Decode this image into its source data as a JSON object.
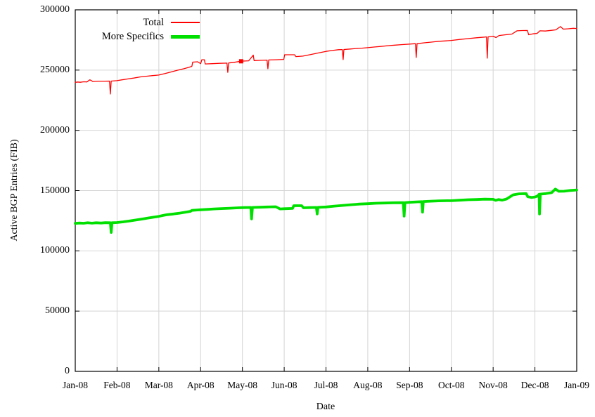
{
  "figure": {
    "background": "#ffffff",
    "border_color": "#000000",
    "grid_color": "#d4d4d4",
    "tick_color": "#000000",
    "text_color": "#000000"
  },
  "chart_data": {
    "type": "line",
    "title": "",
    "xlabel": "Date",
    "ylabel": "Active BGP Entries (FIB)",
    "grid": true,
    "legend_position": "top-left-inside",
    "ylim": [
      0,
      300000
    ],
    "y_tick_values": [
      0,
      50000,
      100000,
      150000,
      200000,
      250000,
      300000
    ],
    "y_tick_labels": [
      "0",
      "50000",
      "100000",
      "150000",
      "200000",
      "250000",
      "300000"
    ],
    "x_tick_values": [
      0,
      1,
      2,
      3,
      4,
      5,
      6,
      7,
      8,
      9,
      10,
      11,
      12
    ],
    "x_tick_labels": [
      "Jan-08",
      "Feb-08",
      "Mar-08",
      "Apr-08",
      "May-08",
      "Jun-08",
      "Jul-08",
      "Aug-08",
      "Sep-08",
      "Oct-08",
      "Nov-08",
      "Dec-08",
      "Jan-09"
    ],
    "series": [
      {
        "name": "Total",
        "color": "#ff0000",
        "stroke_width": 1.3,
        "points": [
          [
            0.0,
            239800
          ],
          [
            0.06,
            240100
          ],
          [
            0.12,
            239900
          ],
          [
            0.2,
            240300
          ],
          [
            0.28,
            240200
          ],
          [
            0.35,
            241900
          ],
          [
            0.42,
            240500
          ],
          [
            0.55,
            240800
          ],
          [
            0.7,
            240800
          ],
          [
            0.82,
            240900
          ],
          [
            0.84,
            230100
          ],
          [
            0.86,
            240900
          ],
          [
            1.0,
            241200
          ],
          [
            1.12,
            241900
          ],
          [
            1.25,
            242600
          ],
          [
            1.4,
            243400
          ],
          [
            1.55,
            244300
          ],
          [
            1.7,
            244900
          ],
          [
            1.85,
            245400
          ],
          [
            2.0,
            245900
          ],
          [
            2.15,
            247100
          ],
          [
            2.3,
            248500
          ],
          [
            2.45,
            249900
          ],
          [
            2.6,
            251100
          ],
          [
            2.72,
            252300
          ],
          [
            2.79,
            253100
          ],
          [
            2.81,
            256600
          ],
          [
            2.93,
            256900
          ],
          [
            3.0,
            255300
          ],
          [
            3.03,
            258600
          ],
          [
            3.09,
            258600
          ],
          [
            3.11,
            255100
          ],
          [
            3.28,
            255300
          ],
          [
            3.45,
            255600
          ],
          [
            3.63,
            255800
          ],
          [
            3.65,
            248100
          ],
          [
            3.67,
            255900
          ],
          [
            3.8,
            256400
          ],
          [
            3.93,
            257200
          ],
          [
            4.02,
            257500
          ],
          [
            4.15,
            257700
          ],
          [
            4.26,
            262400
          ],
          [
            4.28,
            257900
          ],
          [
            4.45,
            258100
          ],
          [
            4.59,
            258300
          ],
          [
            4.61,
            251100
          ],
          [
            4.63,
            258400
          ],
          [
            4.8,
            258600
          ],
          [
            4.99,
            258900
          ],
          [
            5.01,
            262700
          ],
          [
            5.25,
            262700
          ],
          [
            5.28,
            261200
          ],
          [
            5.45,
            261600
          ],
          [
            5.62,
            262800
          ],
          [
            5.8,
            264100
          ],
          [
            6.0,
            265500
          ],
          [
            6.15,
            266300
          ],
          [
            6.3,
            266900
          ],
          [
            6.39,
            267000
          ],
          [
            6.41,
            258700
          ],
          [
            6.43,
            267100
          ],
          [
            6.58,
            267500
          ],
          [
            6.72,
            267900
          ],
          [
            6.86,
            268200
          ],
          [
            7.0,
            268600
          ],
          [
            7.15,
            269100
          ],
          [
            7.3,
            269600
          ],
          [
            7.5,
            270300
          ],
          [
            7.65,
            270700
          ],
          [
            7.8,
            271100
          ],
          [
            8.0,
            271600
          ],
          [
            8.14,
            271900
          ],
          [
            8.16,
            260500
          ],
          [
            8.18,
            271900
          ],
          [
            8.35,
            272600
          ],
          [
            8.52,
            273200
          ],
          [
            8.7,
            273900
          ],
          [
            8.85,
            274200
          ],
          [
            9.0,
            274600
          ],
          [
            9.2,
            275400
          ],
          [
            9.4,
            276100
          ],
          [
            9.6,
            276800
          ],
          [
            9.8,
            277400
          ],
          [
            9.84,
            277600
          ],
          [
            9.86,
            259900
          ],
          [
            9.88,
            277600
          ],
          [
            10.0,
            278100
          ],
          [
            10.07,
            277000
          ],
          [
            10.14,
            278700
          ],
          [
            10.3,
            279300
          ],
          [
            10.45,
            279900
          ],
          [
            10.57,
            282600
          ],
          [
            10.7,
            282800
          ],
          [
            10.82,
            282900
          ],
          [
            10.85,
            279300
          ],
          [
            10.95,
            280100
          ],
          [
            11.05,
            280400
          ],
          [
            11.12,
            282600
          ],
          [
            11.25,
            282400
          ],
          [
            11.4,
            283000
          ],
          [
            11.5,
            283400
          ],
          [
            11.61,
            286100
          ],
          [
            11.68,
            284000
          ],
          [
            11.8,
            284300
          ],
          [
            11.92,
            284700
          ],
          [
            12.0,
            284500
          ]
        ]
      },
      {
        "name": "More Specifics",
        "color": "#00e000",
        "stroke_width": 3.8,
        "points": [
          [
            0.0,
            122800
          ],
          [
            0.1,
            123100
          ],
          [
            0.2,
            122900
          ],
          [
            0.3,
            123300
          ],
          [
            0.4,
            123000
          ],
          [
            0.5,
            123300
          ],
          [
            0.62,
            123100
          ],
          [
            0.72,
            123400
          ],
          [
            0.84,
            123300
          ],
          [
            0.86,
            115300
          ],
          [
            0.88,
            123300
          ],
          [
            1.0,
            123500
          ],
          [
            1.15,
            124100
          ],
          [
            1.3,
            124800
          ],
          [
            1.45,
            125600
          ],
          [
            1.6,
            126400
          ],
          [
            1.75,
            127300
          ],
          [
            1.9,
            128100
          ],
          [
            2.0,
            128600
          ],
          [
            2.1,
            129400
          ],
          [
            2.2,
            130000
          ],
          [
            2.35,
            130600
          ],
          [
            2.5,
            131300
          ],
          [
            2.65,
            132200
          ],
          [
            2.76,
            132800
          ],
          [
            2.79,
            133600
          ],
          [
            2.92,
            133900
          ],
          [
            3.0,
            134100
          ],
          [
            3.15,
            134400
          ],
          [
            3.32,
            134800
          ],
          [
            3.5,
            135100
          ],
          [
            3.7,
            135400
          ],
          [
            3.9,
            135700
          ],
          [
            4.05,
            135900
          ],
          [
            4.2,
            136000
          ],
          [
            4.22,
            126500
          ],
          [
            4.24,
            136000
          ],
          [
            4.42,
            136200
          ],
          [
            4.6,
            136400
          ],
          [
            4.8,
            136600
          ],
          [
            4.9,
            134800
          ],
          [
            5.0,
            135000
          ],
          [
            5.2,
            135200
          ],
          [
            5.23,
            137500
          ],
          [
            5.42,
            137500
          ],
          [
            5.46,
            135700
          ],
          [
            5.62,
            135900
          ],
          [
            5.77,
            136000
          ],
          [
            5.79,
            130600
          ],
          [
            5.81,
            136100
          ],
          [
            6.0,
            136400
          ],
          [
            6.2,
            137100
          ],
          [
            6.4,
            137700
          ],
          [
            6.6,
            138300
          ],
          [
            6.8,
            138800
          ],
          [
            7.0,
            139100
          ],
          [
            7.2,
            139500
          ],
          [
            7.4,
            139700
          ],
          [
            7.62,
            139900
          ],
          [
            7.85,
            140000
          ],
          [
            7.87,
            128800
          ],
          [
            7.89,
            140000
          ],
          [
            8.0,
            140300
          ],
          [
            8.2,
            140700
          ],
          [
            8.29,
            140800
          ],
          [
            8.31,
            132100
          ],
          [
            8.33,
            140900
          ],
          [
            8.5,
            141200
          ],
          [
            8.7,
            141500
          ],
          [
            8.9,
            141600
          ],
          [
            9.0,
            141600
          ],
          [
            9.2,
            142000
          ],
          [
            9.4,
            142400
          ],
          [
            9.6,
            142600
          ],
          [
            9.8,
            142900
          ],
          [
            10.0,
            142800
          ],
          [
            10.06,
            141900
          ],
          [
            10.13,
            142600
          ],
          [
            10.22,
            142100
          ],
          [
            10.32,
            143000
          ],
          [
            10.48,
            146500
          ],
          [
            10.62,
            147300
          ],
          [
            10.79,
            147500
          ],
          [
            10.83,
            144900
          ],
          [
            10.92,
            144300
          ],
          [
            11.0,
            144700
          ],
          [
            11.06,
            145400
          ],
          [
            11.1,
            146900
          ],
          [
            11.11,
            130600
          ],
          [
            11.13,
            147100
          ],
          [
            11.26,
            147500
          ],
          [
            11.4,
            148300
          ],
          [
            11.49,
            151300
          ],
          [
            11.57,
            149400
          ],
          [
            11.7,
            149500
          ],
          [
            11.85,
            150100
          ],
          [
            12.0,
            150500
          ]
        ]
      }
    ],
    "markers": [
      {
        "series": "Total",
        "x": 3.97,
        "value": 257300,
        "shape": "square",
        "size": 6,
        "color": "#ff0000"
      }
    ]
  }
}
